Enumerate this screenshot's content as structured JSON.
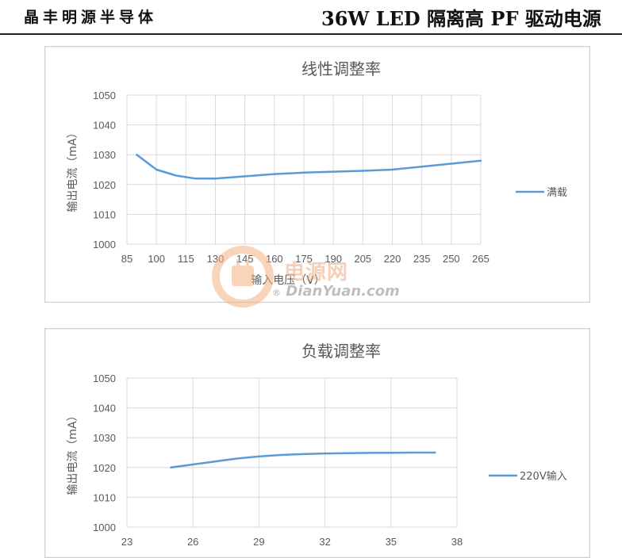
{
  "header": {
    "company": "晶丰明源半导体",
    "title": "36W LED 隔离高 PF 驱动电源"
  },
  "colors": {
    "series": "#5b9bd5",
    "grid": "#d9d9d9",
    "frame": "#d0d0d0",
    "text": "#595959"
  },
  "watermark": {
    "cn": "电源网",
    "en": "DianYuan.com",
    "reg": "®"
  },
  "chart_data": [
    {
      "type": "line",
      "title": "线性调整率",
      "xlabel": "输入电压（V）",
      "ylabel": "输出电流（mA）",
      "xlim": [
        85,
        265
      ],
      "ylim": [
        1000,
        1050
      ],
      "x_ticks": [
        "85",
        "100",
        "115",
        "130",
        "145",
        "160",
        "175",
        "190",
        "205",
        "220",
        "235",
        "250",
        "265"
      ],
      "y_ticks": [
        "1000",
        "1010",
        "1020",
        "1030",
        "1040",
        "1050"
      ],
      "grid": true,
      "legend_position": "right",
      "series": [
        {
          "name": "满载",
          "x": [
            90,
            100,
            110,
            120,
            130,
            140,
            150,
            160,
            175,
            190,
            205,
            220,
            235,
            250,
            265
          ],
          "y": [
            1030,
            1025,
            1023,
            1022,
            1022,
            1022.5,
            1023,
            1023.5,
            1024,
            1024.3,
            1024.6,
            1025,
            1026,
            1027,
            1028
          ]
        }
      ]
    },
    {
      "type": "line",
      "title": "负载调整率",
      "xlabel": "",
      "ylabel": "输出电流（mA）",
      "xlim": [
        23,
        38
      ],
      "ylim": [
        1000,
        1050
      ],
      "x_ticks": [
        "23",
        "26",
        "29",
        "32",
        "35",
        "38"
      ],
      "y_ticks": [
        "1000",
        "1010",
        "1020",
        "1030",
        "1040",
        "1050"
      ],
      "grid": true,
      "legend_position": "right",
      "series": [
        {
          "name": "220V输入",
          "x": [
            25,
            26,
            27,
            28,
            29,
            30,
            31,
            32,
            33,
            34,
            35,
            36,
            37
          ],
          "y": [
            1020,
            1021,
            1022,
            1023,
            1023.7,
            1024.2,
            1024.5,
            1024.7,
            1024.8,
            1024.9,
            1024.95,
            1025,
            1025
          ]
        }
      ]
    }
  ]
}
